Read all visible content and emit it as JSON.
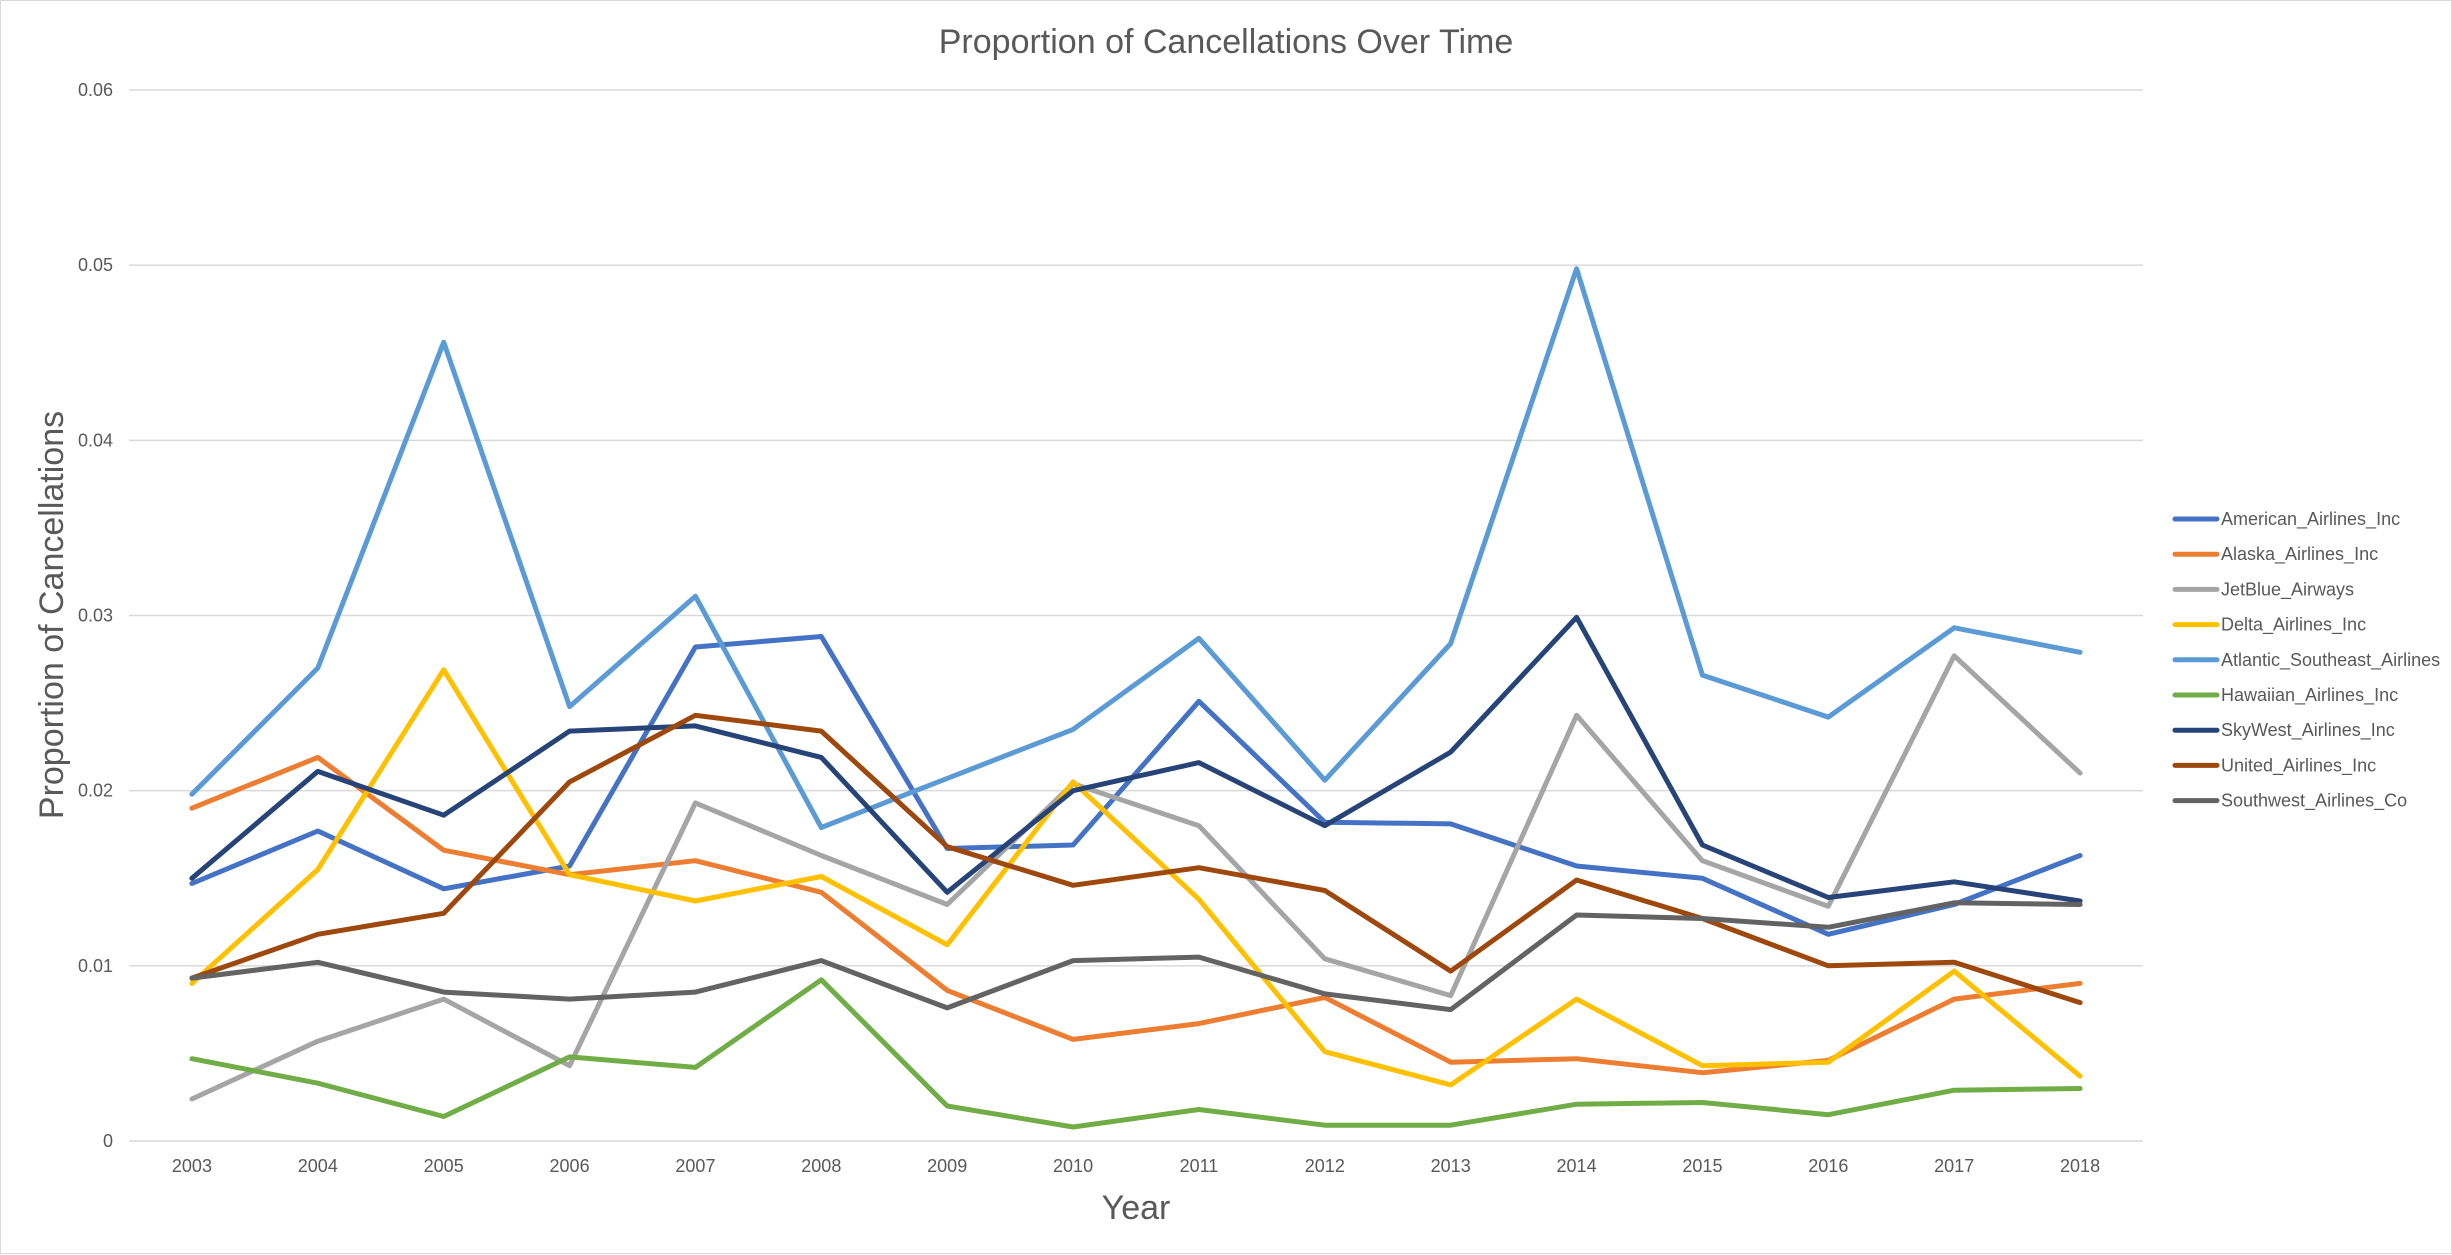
{
  "chart_data": {
    "type": "line",
    "title": "Proportion of Cancellations Over Time",
    "xlabel": "Year",
    "ylabel": "Proportion of Cancellations",
    "ylim": [
      0,
      0.06
    ],
    "yticks": [
      "0",
      "0.01",
      "0.02",
      "0.03",
      "0.04",
      "0.05",
      "0.06"
    ],
    "categories": [
      "2003",
      "2004",
      "2005",
      "2006",
      "2007",
      "2008",
      "2009",
      "2010",
      "2011",
      "2012",
      "2013",
      "2014",
      "2015",
      "2016",
      "2017",
      "2018"
    ],
    "grid": true,
    "legend": "right",
    "series": [
      {
        "name": "American_Airlines_Inc",
        "color": "#4472c4",
        "values": [
          0.0147,
          0.0177,
          0.0144,
          0.0157,
          0.0282,
          0.0288,
          0.0167,
          0.0169,
          0.0251,
          0.0182,
          0.0181,
          0.0157,
          0.015,
          0.0118,
          0.0135,
          0.0163
        ]
      },
      {
        "name": "Alaska_Airlines_Inc",
        "color": "#ed7d31",
        "values": [
          0.019,
          0.0219,
          0.0166,
          0.0152,
          0.016,
          0.0142,
          0.0086,
          0.0058,
          0.0067,
          0.0082,
          0.0045,
          0.0047,
          0.0039,
          0.0046,
          0.0081,
          0.009
        ]
      },
      {
        "name": "JetBlue_Airways",
        "color": "#a5a5a5",
        "values": [
          0.0024,
          0.0057,
          0.0081,
          0.0043,
          0.0193,
          0.0163,
          0.0135,
          0.0204,
          0.018,
          0.0104,
          0.0083,
          0.0243,
          0.016,
          0.0134,
          0.0277,
          0.021
        ]
      },
      {
        "name": "Delta_Airlines_Inc",
        "color": "#ffc000",
        "values": [
          0.009,
          0.0155,
          0.0269,
          0.0152,
          0.0137,
          0.0151,
          0.0112,
          0.0205,
          0.0138,
          0.0051,
          0.0032,
          0.0081,
          0.0043,
          0.0045,
          0.0097,
          0.0037
        ]
      },
      {
        "name": "Atlantic_Southeast_Airlines",
        "color": "#5b9bd5",
        "values": [
          0.0198,
          0.027,
          0.0456,
          0.0248,
          0.0311,
          0.0179,
          0.0207,
          0.0235,
          0.0287,
          0.0206,
          0.0284,
          0.0498,
          0.0266,
          0.0242,
          0.0293,
          0.0279
        ]
      },
      {
        "name": "Hawaiian_Airlines_Inc",
        "color": "#70ad47",
        "values": [
          0.0047,
          0.0033,
          0.0014,
          0.0048,
          0.0042,
          0.0092,
          0.002,
          0.0008,
          0.0018,
          0.0009,
          0.0009,
          0.0021,
          0.0022,
          0.0015,
          0.0029,
          0.003
        ]
      },
      {
        "name": "SkyWest_Airlines_Inc",
        "color": "#264478",
        "values": [
          0.015,
          0.0211,
          0.0186,
          0.0234,
          0.0237,
          0.0219,
          0.0142,
          0.02,
          0.0216,
          0.018,
          0.0222,
          0.0299,
          0.0169,
          0.0139,
          0.0148,
          0.0137
        ]
      },
      {
        "name": "United_Airlines_Inc",
        "color": "#9e480e",
        "values": [
          0.0093,
          0.0118,
          0.013,
          0.0205,
          0.0243,
          0.0234,
          0.0168,
          0.0146,
          0.0156,
          0.0143,
          0.0097,
          0.0149,
          0.0127,
          0.01,
          0.0102,
          0.0079
        ]
      },
      {
        "name": "Southwest_Airlines_Co",
        "color": "#636363",
        "values": [
          0.0093,
          0.0102,
          0.0085,
          0.0081,
          0.0085,
          0.0103,
          0.0076,
          0.0103,
          0.0105,
          0.0084,
          0.0075,
          0.0129,
          0.0127,
          0.0122,
          0.0136,
          0.0135
        ]
      }
    ]
  }
}
